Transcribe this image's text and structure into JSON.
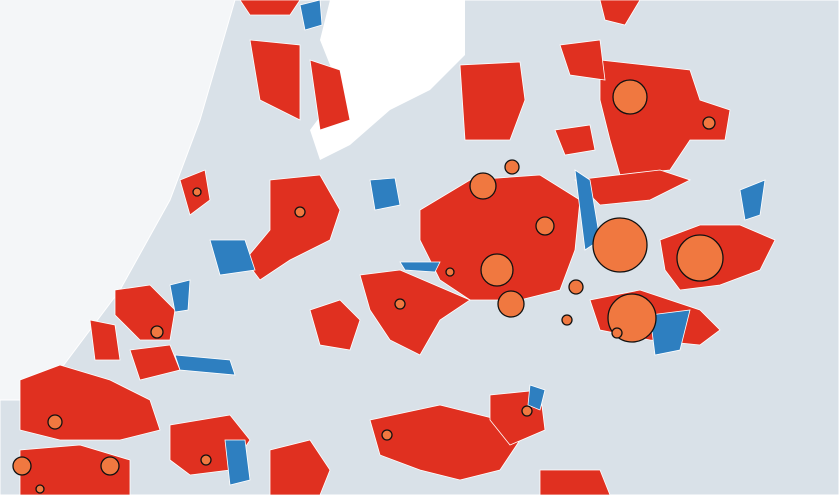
{
  "map": {
    "bubbles": [
      17,
      27,
      23,
      24,
      16,
      13,
      13,
      9,
      7,
      6,
      7,
      5,
      5,
      5,
      6,
      7,
      9,
      9,
      5,
      5,
      5,
      4,
      4,
      5,
      4
    ]
  }
}
